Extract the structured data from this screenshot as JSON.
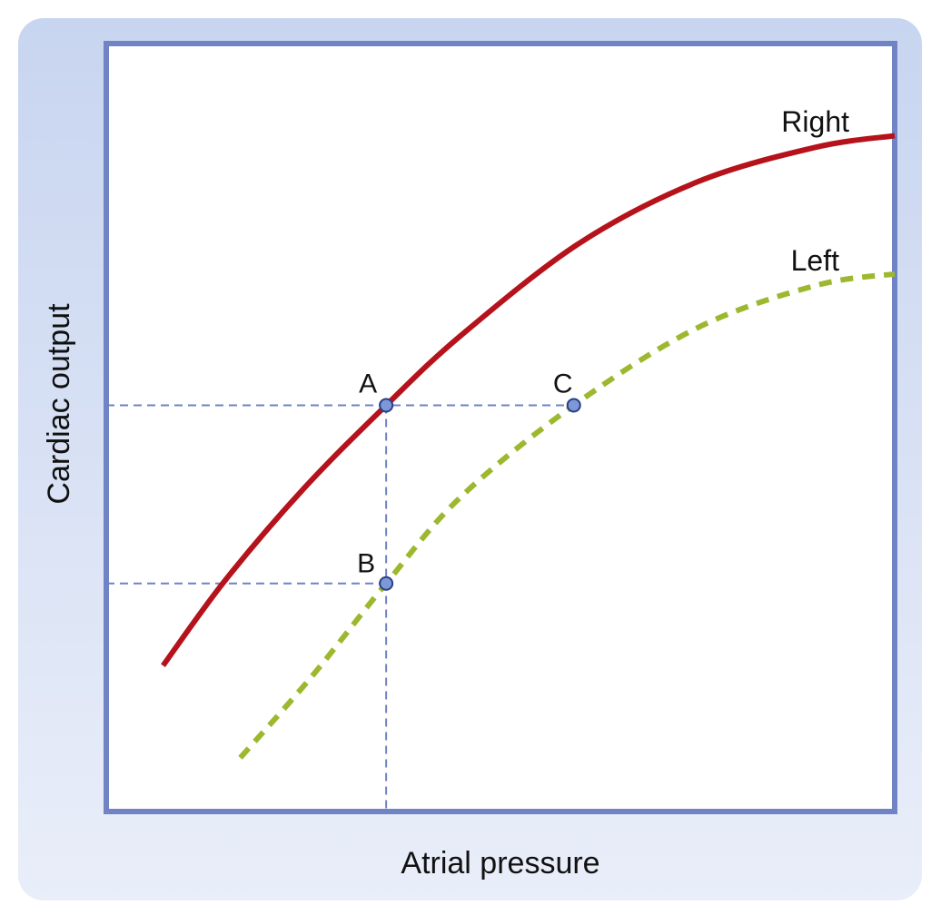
{
  "chart_data": {
    "type": "line",
    "xlabel": "Atrial pressure",
    "ylabel": "Cardiac output",
    "xlim": [
      0,
      10
    ],
    "ylim": [
      0,
      10
    ],
    "grid": false,
    "colors": {
      "panel": "#c8d5f0",
      "frame": "#7083c4",
      "guide": "#6f82c3",
      "right": "#b5121b",
      "left": "#9cb82e",
      "point": "#7d98d8"
    },
    "series": [
      {
        "name": "Right",
        "style": "solid",
        "points": [
          [
            0.72,
            1.9
          ],
          [
            1.5,
            3.0
          ],
          [
            2.5,
            4.2
          ],
          [
            3.55,
            5.29
          ],
          [
            4.5,
            6.2
          ],
          [
            6.0,
            7.4
          ],
          [
            7.5,
            8.2
          ],
          [
            9.0,
            8.65
          ],
          [
            10.0,
            8.8
          ]
        ]
      },
      {
        "name": "Left",
        "style": "dashed",
        "points": [
          [
            1.7,
            0.7
          ],
          [
            2.6,
            1.75
          ],
          [
            3.55,
            2.97
          ],
          [
            4.5,
            4.1
          ],
          [
            5.93,
            5.29
          ],
          [
            7.5,
            6.3
          ],
          [
            9.0,
            6.85
          ],
          [
            10.0,
            7.0
          ]
        ]
      }
    ],
    "points": [
      {
        "label": "A",
        "x": 3.55,
        "y": 5.29
      },
      {
        "label": "B",
        "x": 3.55,
        "y": 2.97
      },
      {
        "label": "C",
        "x": 5.93,
        "y": 5.29
      }
    ]
  }
}
